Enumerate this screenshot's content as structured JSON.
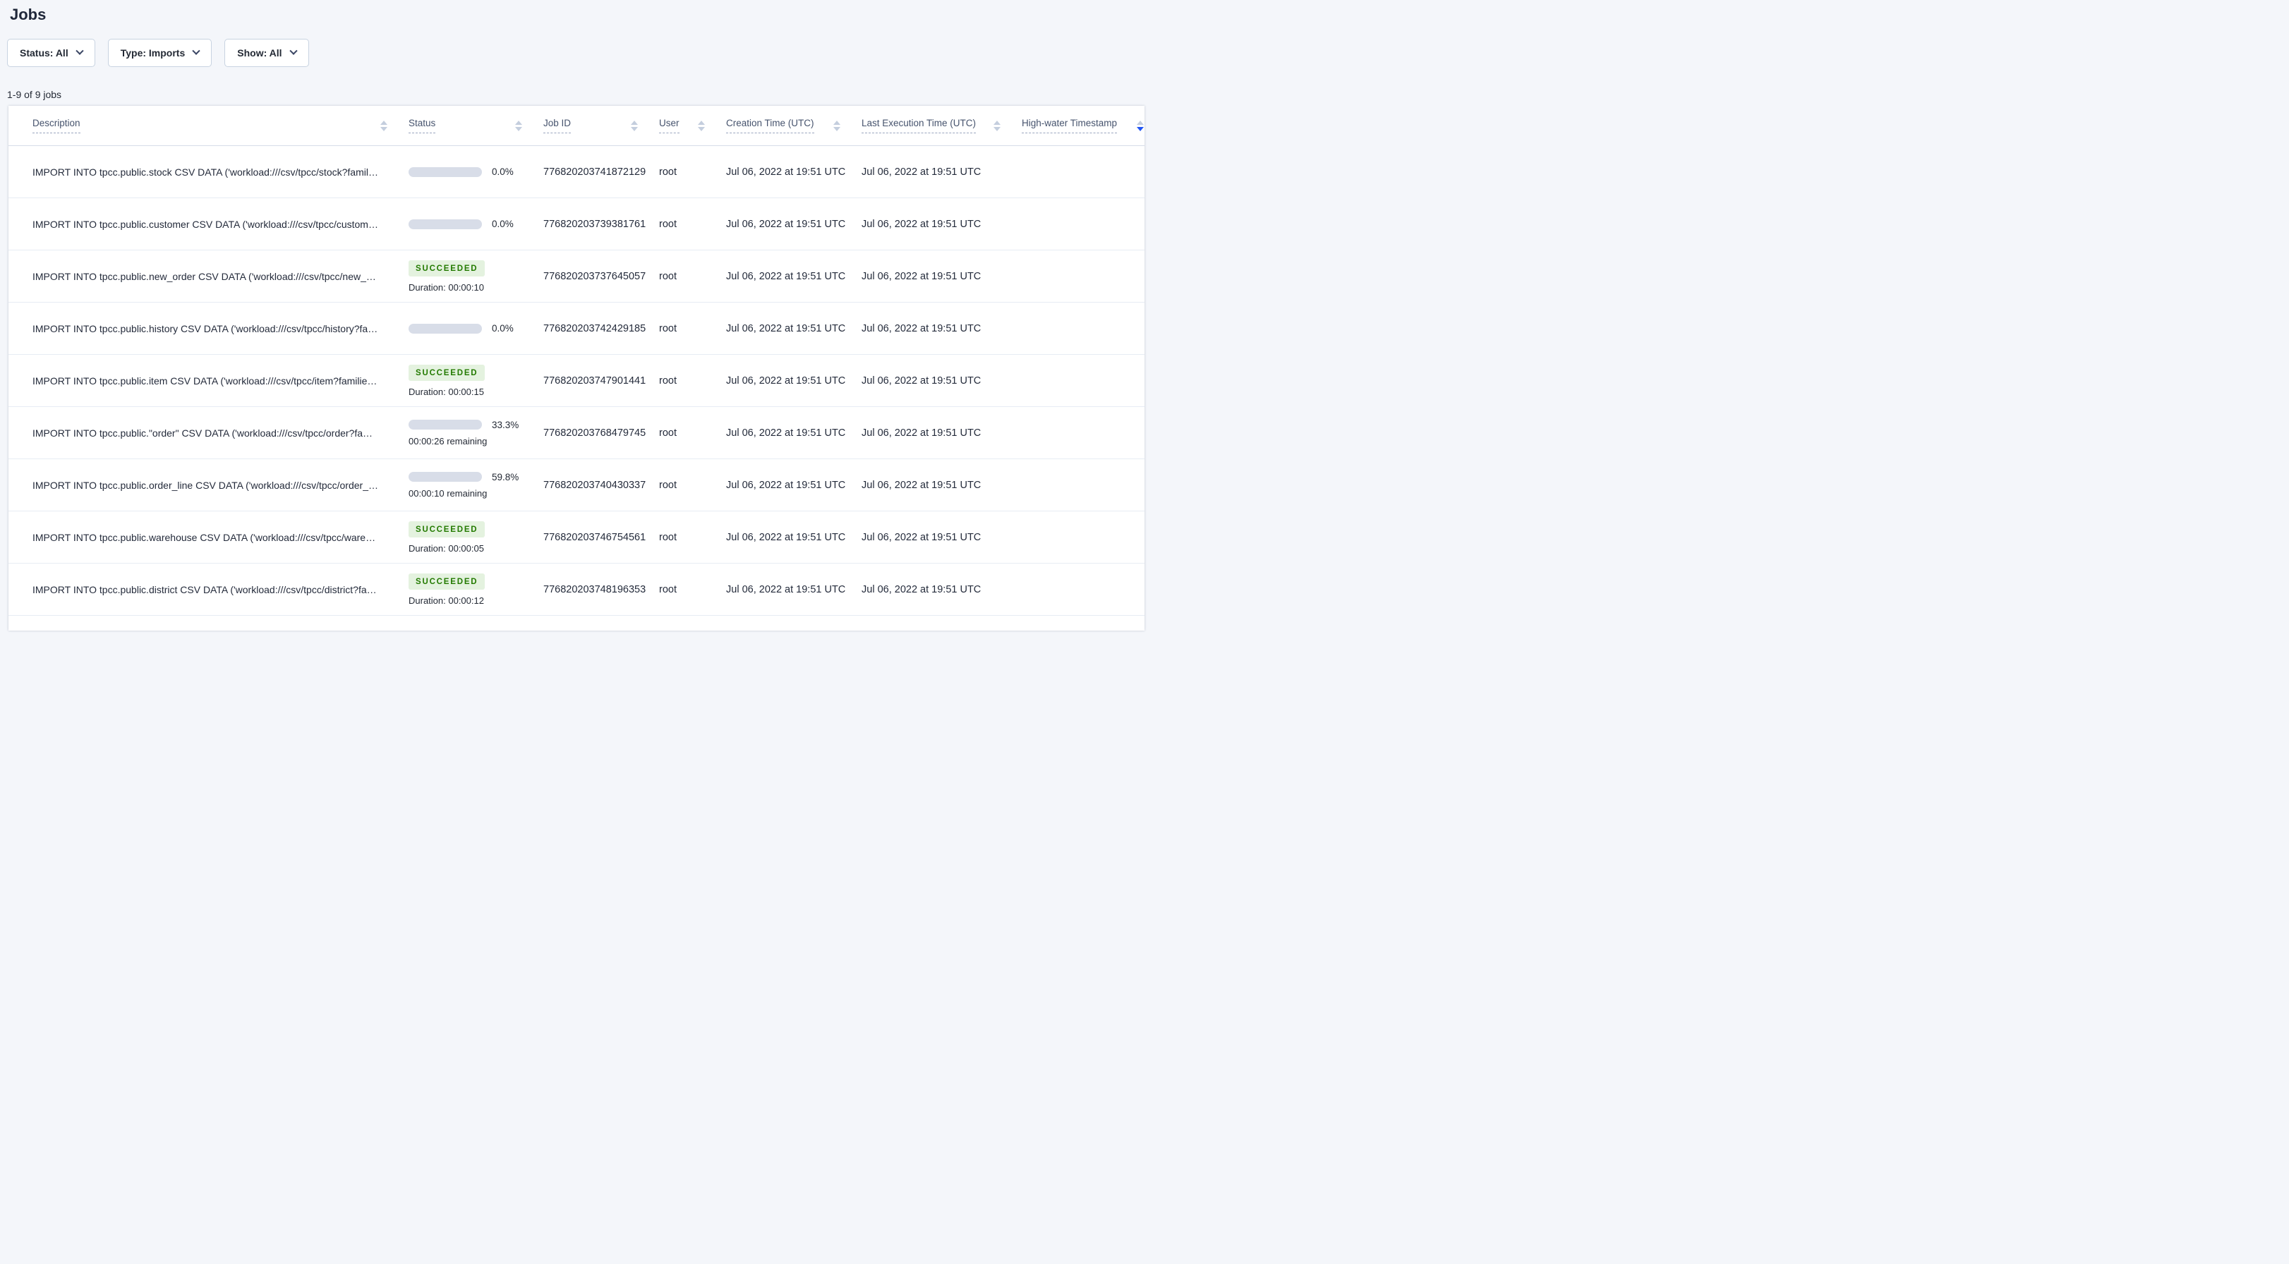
{
  "page": {
    "title": "Jobs",
    "jobs_count": "1-9 of 9 jobs"
  },
  "filters": [
    {
      "label": "Status: All"
    },
    {
      "label": "Type: Imports"
    },
    {
      "label": "Show: All"
    }
  ],
  "colors": {
    "accent_blue": "#2155f4",
    "success_badge_bg": "#e4f2df",
    "success_badge_text": "#237a00",
    "progress_track": "#d8dde8"
  },
  "table": {
    "columns": [
      {
        "label": "Description",
        "sort": "none"
      },
      {
        "label": "Status",
        "sort": "none"
      },
      {
        "label": "Job ID",
        "sort": "none"
      },
      {
        "label": "User",
        "sort": "none"
      },
      {
        "label": "Creation Time (UTC)",
        "sort": "none"
      },
      {
        "label": "Last Execution Time (UTC)",
        "sort": "none"
      },
      {
        "label": "High-water Timestamp",
        "sort": "desc"
      }
    ],
    "rows": [
      {
        "description": "IMPORT INTO tpcc.public.stock CSV DATA ('workload:///csv/tpcc/stock?families…",
        "status": {
          "type": "running",
          "percent": "0.0%",
          "fraction": 0.0,
          "sub": ""
        },
        "job_id": "776820203741872129",
        "user": "root",
        "created": "Jul 06, 2022 at 19:51 UTC",
        "last_execution": "Jul 06, 2022 at 19:51 UTC",
        "high_water": ""
      },
      {
        "description": "IMPORT INTO tpcc.public.customer CSV DATA ('workload:///csv/tpcc/customer?f…",
        "status": {
          "type": "running",
          "percent": "0.0%",
          "fraction": 0.0,
          "sub": ""
        },
        "job_id": "776820203739381761",
        "user": "root",
        "created": "Jul 06, 2022 at 19:51 UTC",
        "last_execution": "Jul 06, 2022 at 19:51 UTC",
        "high_water": ""
      },
      {
        "description": "IMPORT INTO tpcc.public.new_order CSV DATA ('workload:///csv/tpcc/new_ord…",
        "status": {
          "type": "succeeded",
          "label": "SUCCEEDED",
          "sub": "Duration: 00:00:10"
        },
        "job_id": "776820203737645057",
        "user": "root",
        "created": "Jul 06, 2022 at 19:51 UTC",
        "last_execution": "Jul 06, 2022 at 19:51 UTC",
        "high_water": ""
      },
      {
        "description": "IMPORT INTO tpcc.public.history CSV DATA ('workload:///csv/tpcc/history?famil…",
        "status": {
          "type": "running",
          "percent": "0.0%",
          "fraction": 0.0,
          "sub": ""
        },
        "job_id": "776820203742429185",
        "user": "root",
        "created": "Jul 06, 2022 at 19:51 UTC",
        "last_execution": "Jul 06, 2022 at 19:51 UTC",
        "high_water": ""
      },
      {
        "description": "IMPORT INTO tpcc.public.item CSV DATA ('workload:///csv/tpcc/item?families=f…",
        "status": {
          "type": "succeeded",
          "label": "SUCCEEDED",
          "sub": "Duration: 00:00:15"
        },
        "job_id": "776820203747901441",
        "user": "root",
        "created": "Jul 06, 2022 at 19:51 UTC",
        "last_execution": "Jul 06, 2022 at 19:51 UTC",
        "high_water": ""
      },
      {
        "description": "IMPORT INTO tpcc.public.\"order\" CSV DATA ('workload:///csv/tpcc/order?familie…",
        "status": {
          "type": "running",
          "percent": "33.3%",
          "fraction": 0.333,
          "sub": "00:00:26 remaining"
        },
        "job_id": "776820203768479745",
        "user": "root",
        "created": "Jul 06, 2022 at 19:51 UTC",
        "last_execution": "Jul 06, 2022 at 19:51 UTC",
        "high_water": ""
      },
      {
        "description": "IMPORT INTO tpcc.public.order_line CSV DATA ('workload:///csv/tpcc/order_lin…",
        "status": {
          "type": "running",
          "percent": "59.8%",
          "fraction": 0.598,
          "sub": "00:00:10 remaining"
        },
        "job_id": "776820203740430337",
        "user": "root",
        "created": "Jul 06, 2022 at 19:51 UTC",
        "last_execution": "Jul 06, 2022 at 19:51 UTC",
        "high_water": ""
      },
      {
        "description": "IMPORT INTO tpcc.public.warehouse CSV DATA ('workload:///csv/tpcc/warehou…",
        "status": {
          "type": "succeeded",
          "label": "SUCCEEDED",
          "sub": "Duration: 00:00:05"
        },
        "job_id": "776820203746754561",
        "user": "root",
        "created": "Jul 06, 2022 at 19:51 UTC",
        "last_execution": "Jul 06, 2022 at 19:51 UTC",
        "high_water": ""
      },
      {
        "description": "IMPORT INTO tpcc.public.district CSV DATA ('workload:///csv/tpcc/district?famil…",
        "status": {
          "type": "succeeded",
          "label": "SUCCEEDED",
          "sub": "Duration: 00:00:12"
        },
        "job_id": "776820203748196353",
        "user": "root",
        "created": "Jul 06, 2022 at 19:51 UTC",
        "last_execution": "Jul 06, 2022 at 19:51 UTC",
        "high_water": ""
      }
    ]
  }
}
